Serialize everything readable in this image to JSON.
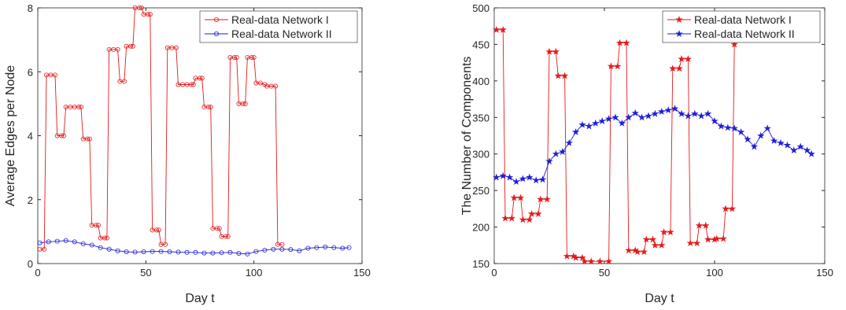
{
  "chart_data": [
    {
      "type": "line",
      "marker": "circle",
      "xlabel": "Day t",
      "ylabel": "Average Edges per Node",
      "xlim": [
        0,
        150
      ],
      "xticks": [
        0,
        50,
        100,
        150
      ],
      "ylim": [
        0,
        8
      ],
      "yticks": [
        0,
        2,
        4,
        6,
        8
      ],
      "legend": "upper right",
      "series": [
        {
          "name": "Real-data Network I",
          "color": "#e41a1c",
          "x": [
            1,
            3,
            4,
            6,
            8,
            9,
            11,
            12,
            13,
            15,
            17,
            19,
            20,
            21,
            23,
            24,
            25,
            27,
            28,
            29,
            31,
            32,
            33,
            35,
            37,
            38,
            40,
            41,
            43,
            44,
            45,
            47,
            48,
            49,
            51,
            52,
            53,
            55,
            56,
            57,
            59,
            60,
            62,
            64,
            65,
            67,
            69,
            71,
            72,
            73,
            75,
            76,
            77,
            79,
            80,
            81,
            83,
            84,
            85,
            87,
            88,
            89,
            91,
            92,
            93,
            95,
            96,
            97,
            99,
            100,
            101,
            103,
            105,
            106,
            108,
            110,
            111,
            113
          ],
          "values": [
            0.45,
            0.45,
            5.9,
            5.9,
            5.9,
            4.0,
            4.0,
            4.0,
            4.9,
            4.9,
            4.9,
            4.9,
            4.9,
            3.9,
            3.9,
            3.9,
            1.2,
            1.2,
            1.2,
            0.8,
            0.8,
            0.8,
            6.7,
            6.7,
            6.7,
            5.7,
            5.7,
            6.8,
            6.8,
            6.8,
            8.0,
            8.0,
            8.0,
            7.8,
            7.8,
            7.8,
            1.05,
            1.05,
            1.05,
            0.6,
            0.6,
            6.75,
            6.75,
            6.75,
            5.6,
            5.6,
            5.6,
            5.6,
            5.6,
            5.8,
            5.8,
            5.8,
            4.9,
            4.9,
            4.9,
            1.1,
            1.1,
            1.1,
            0.85,
            0.85,
            0.85,
            6.45,
            6.45,
            6.45,
            5.0,
            5.0,
            5.0,
            6.45,
            6.45,
            6.45,
            5.65,
            5.65,
            5.6,
            5.55,
            5.55,
            5.55,
            0.6,
            0.6
          ]
        },
        {
          "name": "Real-data Network II",
          "color": "#1f1fd6",
          "x": [
            1,
            5,
            9,
            13,
            17,
            21,
            25,
            29,
            33,
            37,
            41,
            45,
            49,
            53,
            57,
            61,
            65,
            69,
            73,
            77,
            81,
            85,
            89,
            93,
            97,
            101,
            105,
            109,
            113,
            117,
            121,
            125,
            129,
            133,
            137,
            141,
            144
          ],
          "values": [
            0.65,
            0.68,
            0.7,
            0.72,
            0.68,
            0.62,
            0.58,
            0.5,
            0.45,
            0.4,
            0.37,
            0.36,
            0.37,
            0.38,
            0.38,
            0.37,
            0.36,
            0.35,
            0.35,
            0.33,
            0.33,
            0.34,
            0.35,
            0.32,
            0.3,
            0.38,
            0.42,
            0.45,
            0.45,
            0.44,
            0.4,
            0.48,
            0.5,
            0.52,
            0.5,
            0.48,
            0.5
          ]
        }
      ]
    },
    {
      "type": "line",
      "marker": "star",
      "xlabel": "Day t",
      "ylabel": "The Number of Components",
      "xlim": [
        0,
        150
      ],
      "xticks": [
        0,
        50,
        100,
        150
      ],
      "ylim": [
        150,
        500
      ],
      "yticks": [
        150,
        200,
        250,
        300,
        350,
        400,
        450,
        500
      ],
      "legend": "upper right",
      "series": [
        {
          "name": "Real-data Network I",
          "color": "#e41a1c",
          "x": [
            1,
            4,
            5,
            8,
            9,
            12,
            13,
            16,
            17,
            20,
            21,
            24,
            25,
            28,
            29,
            32,
            33,
            36,
            37,
            40,
            41,
            44,
            48,
            52,
            53,
            56,
            57,
            60,
            61,
            64,
            65,
            68,
            69,
            72,
            73,
            76,
            77,
            80,
            81,
            84,
            85,
            88,
            89,
            92,
            93,
            96,
            97,
            100,
            101,
            104,
            105,
            108,
            109
          ],
          "values": [
            470,
            470,
            212,
            212,
            240,
            240,
            210,
            210,
            218,
            218,
            238,
            238,
            440,
            440,
            407,
            407,
            160,
            160,
            158,
            158,
            153,
            153,
            153,
            153,
            420,
            420,
            452,
            452,
            168,
            168,
            166,
            166,
            183,
            183,
            175,
            175,
            193,
            193,
            417,
            417,
            430,
            430,
            178,
            178,
            202,
            202,
            183,
            183,
            184,
            184,
            225,
            225,
            450
          ]
        },
        {
          "name": "Real-data Network II",
          "color": "#1f1fd6",
          "x": [
            1,
            4,
            7,
            10,
            13,
            16,
            19,
            22,
            25,
            28,
            31,
            34,
            37,
            40,
            43,
            46,
            49,
            52,
            55,
            58,
            61,
            64,
            67,
            70,
            73,
            76,
            79,
            82,
            85,
            88,
            91,
            94,
            97,
            100,
            103,
            106,
            109,
            112,
            115,
            118,
            121,
            124,
            127,
            130,
            133,
            136,
            139,
            142,
            144
          ],
          "values": [
            268,
            270,
            268,
            262,
            266,
            268,
            264,
            265,
            290,
            300,
            303,
            315,
            330,
            340,
            338,
            342,
            345,
            348,
            350,
            342,
            350,
            356,
            350,
            352,
            355,
            358,
            360,
            362,
            355,
            352,
            355,
            352,
            355,
            345,
            338,
            336,
            335,
            330,
            320,
            310,
            325,
            335,
            318,
            315,
            312,
            305,
            310,
            305,
            300
          ]
        }
      ]
    }
  ]
}
